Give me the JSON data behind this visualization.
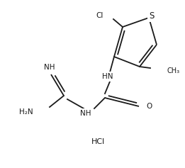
{
  "background": "#ffffff",
  "line_color": "#1a1a1a",
  "line_width": 1.3,
  "font_size": 7.5,
  "fig_width": 2.61,
  "fig_height": 2.37,
  "dpi": 100,
  "xlim": [
    0,
    261
  ],
  "ylim": [
    0,
    237
  ]
}
